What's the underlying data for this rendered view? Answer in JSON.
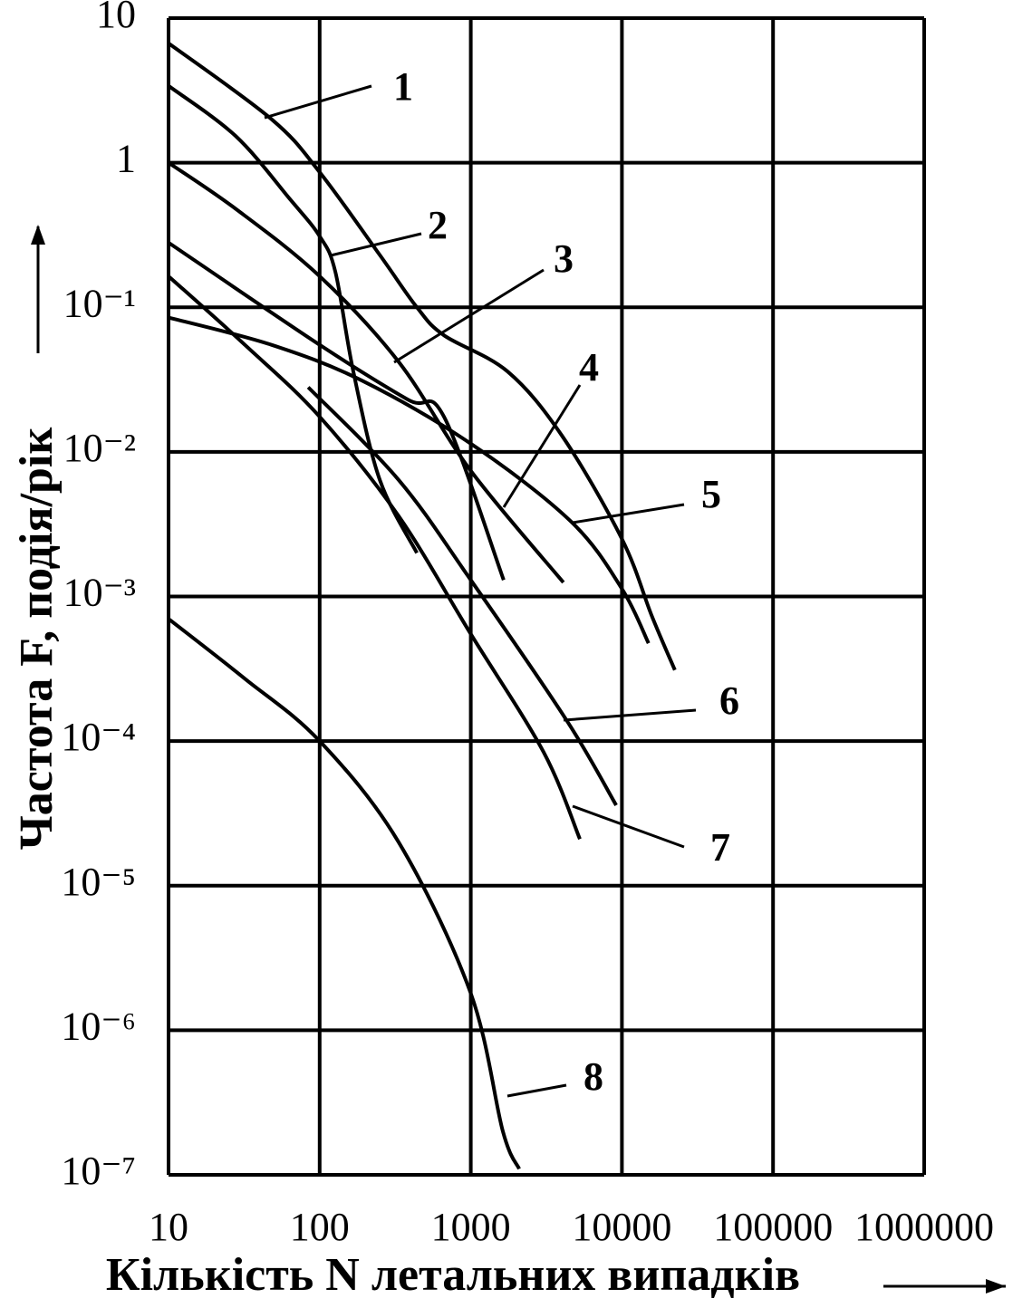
{
  "chart_data": {
    "type": "line",
    "x_label": "Кількість N летальних випадків",
    "y_label": "Частота F, подія/рік",
    "xlog": true,
    "ylog": true,
    "grid": true,
    "xlim": [
      10,
      1000000
    ],
    "xticks": [
      10,
      100,
      1000,
      10000,
      100000,
      1000000
    ],
    "ylim": [
      1e-07,
      10
    ],
    "yticks": [
      10,
      1,
      {
        "value": 0.1,
        "label": "10⁻¹"
      },
      {
        "value": 0.01,
        "label": "10⁻²"
      },
      {
        "value": 0.001,
        "label": "10⁻³"
      },
      {
        "value": 0.0001,
        "label": "10⁻⁴"
      },
      {
        "value": 1e-05,
        "label": "10⁻⁵"
      },
      {
        "value": 1e-06,
        "label": "10⁻⁶"
      },
      {
        "value": 1e-07,
        "label": "10⁻⁷"
      }
    ],
    "series": [
      {
        "name": "1",
        "color": "#000000",
        "x": [
          10,
          48,
          100,
          250,
          440,
          665,
          1750,
          4000,
          10000,
          15800,
          22400
        ],
        "values": [
          6.7,
          2.0,
          0.86,
          0.23,
          0.1,
          0.064,
          0.036,
          0.013,
          0.0025,
          0.00073,
          0.00031
        ]
      },
      {
        "name": "2",
        "color": "#000000",
        "x": [
          10,
          27.8,
          63.6,
          100,
          127,
          167,
          250,
          440
        ],
        "values": [
          3.4,
          1.53,
          0.56,
          0.31,
          0.176,
          0.036,
          0.0064,
          0.002
        ]
      },
      {
        "name": "3",
        "color": "#000000",
        "x": [
          10,
          27.8,
          100,
          333,
          1000,
          4100
        ],
        "values": [
          1,
          0.48,
          0.164,
          0.042,
          0.0074,
          0.00125
        ]
      },
      {
        "name": "4",
        "color": "#000000",
        "x": [
          10,
          100,
          383,
          665,
          1650
        ],
        "values": [
          0.28,
          0.055,
          0.023,
          0.0175,
          0.0013
        ]
      },
      {
        "name": "5",
        "color": "#000000",
        "x": [
          10,
          48,
          192,
          1000,
          4600,
          10000,
          15000
        ],
        "values": [
          0.085,
          0.055,
          0.031,
          0.0114,
          0.0033,
          0.00113,
          0.000475
        ]
      },
      {
        "name": "6",
        "color": "#000000",
        "x": [
          84,
          333,
          1000,
          4290,
          9160
        ],
        "values": [
          0.028,
          0.0064,
          0.0013,
          0.00014,
          3.6e-05
        ]
      },
      {
        "name": "7",
        "color": "#000000",
        "x": [
          10,
          32,
          100,
          333,
          1000,
          3030,
          5270
        ],
        "values": [
          0.164,
          0.055,
          0.0175,
          0.0036,
          0.00055,
          8.4e-05,
          2.1e-05
        ]
      },
      {
        "name": "8",
        "color": "#000000",
        "x": [
          10,
          32,
          100,
          333,
          1000,
          1630,
          2090
        ],
        "values": [
          0.0007,
          0.00027,
          0.0001,
          2e-05,
          1.8e-06,
          2e-07,
          1.1e-07
        ]
      }
    ]
  }
}
